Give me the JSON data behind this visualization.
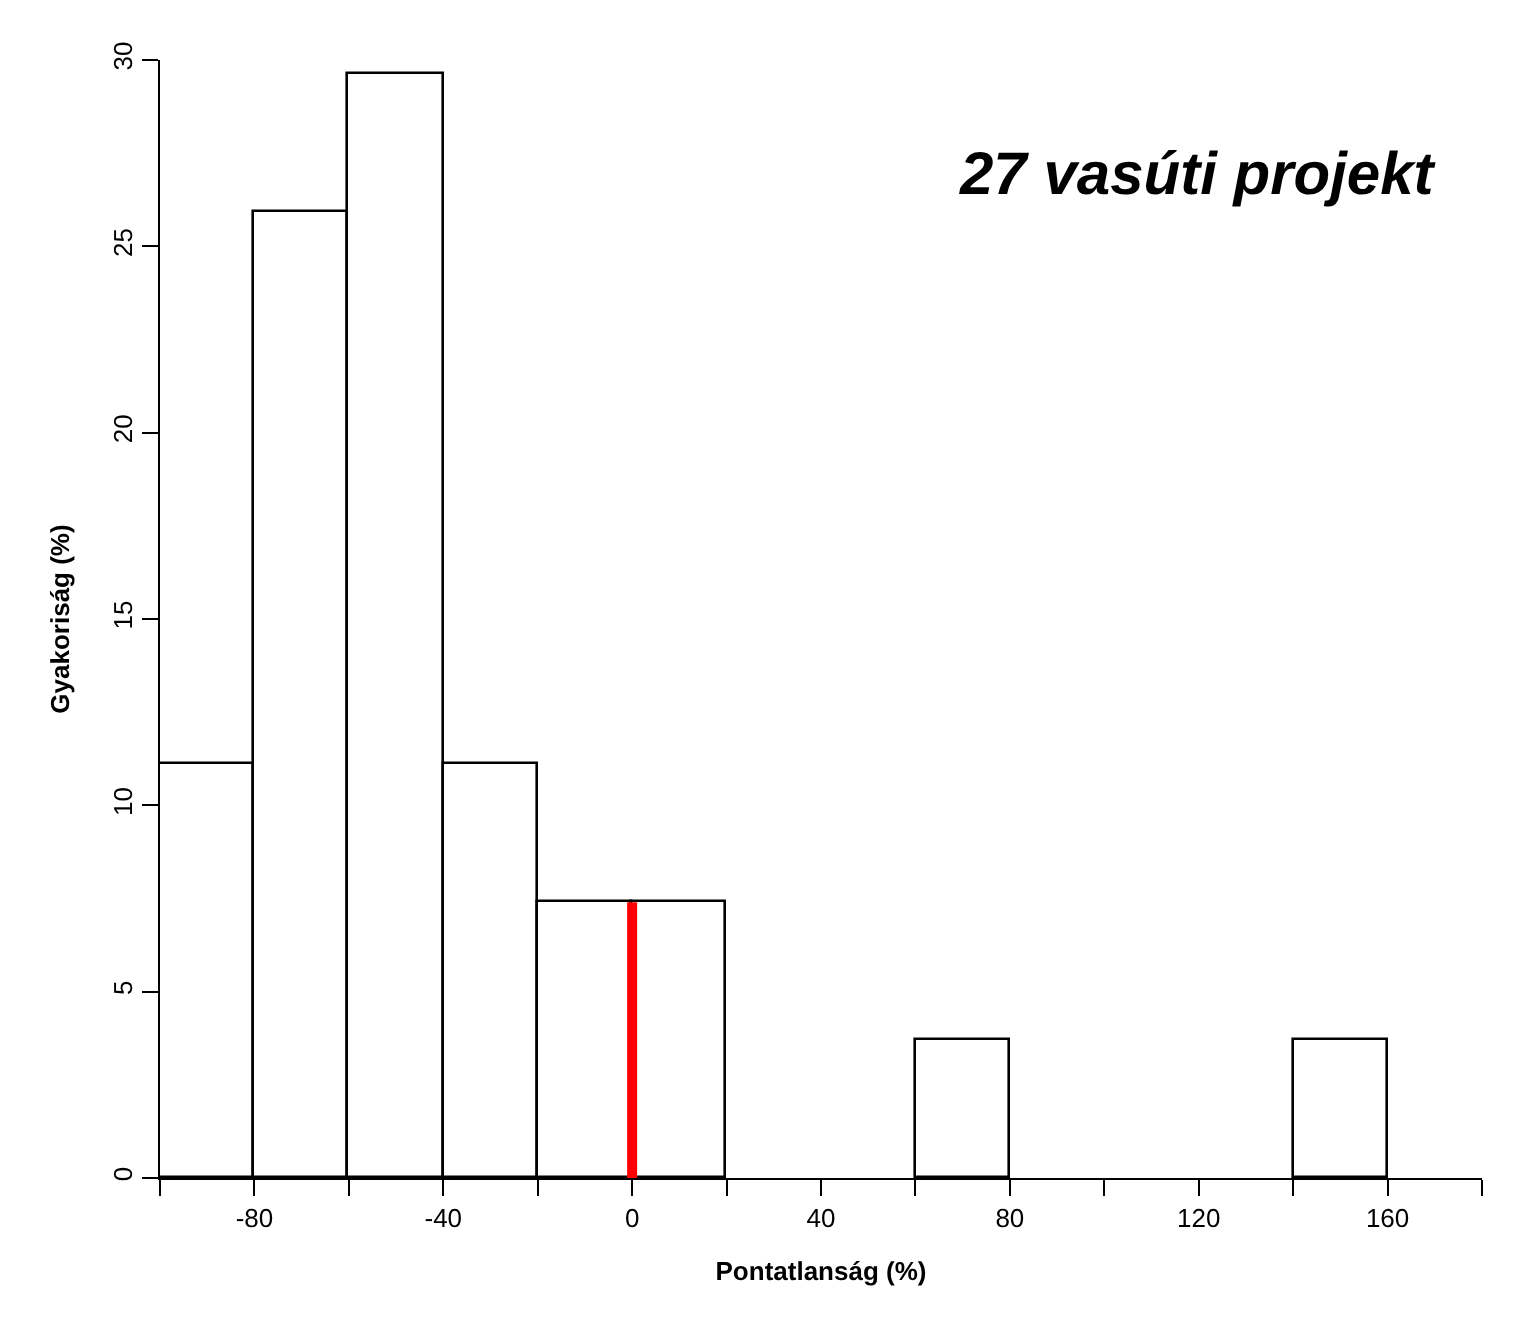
{
  "chart_data": {
    "type": "histogram",
    "title": "27 vasúti projekt",
    "xlabel": "Pontatlanság (%)",
    "ylabel": "Gyakoriság (%)",
    "bins": [
      -100,
      -80,
      -60,
      -40,
      -20,
      0,
      20,
      40,
      60,
      80,
      100,
      120,
      140,
      160,
      180
    ],
    "values": [
      11.1,
      25.9,
      29.6,
      11.1,
      7.4,
      7.4,
      0,
      0,
      3.7,
      0,
      0,
      0,
      3.7,
      0
    ],
    "color": "#ffffff",
    "xlim": [
      -100,
      180
    ],
    "ylim": [
      0,
      30
    ],
    "xticks": [
      {
        "value": -100,
        "label": null
      },
      -80,
      {
        "value": -60,
        "label": null
      },
      -40,
      {
        "value": -20,
        "label": null
      },
      0,
      {
        "value": 20,
        "label": null
      },
      40,
      {
        "value": 60,
        "label": null
      },
      80,
      {
        "value": 100,
        "label": null
      },
      120,
      {
        "value": 140,
        "label": null
      },
      160,
      {
        "value": 180,
        "label": null
      }
    ],
    "yticks": [
      0,
      5,
      10,
      15,
      20,
      25,
      30
    ],
    "ref_lines": [
      {
        "axis": "x",
        "value": 0,
        "color": "#ff0000"
      }
    ]
  }
}
